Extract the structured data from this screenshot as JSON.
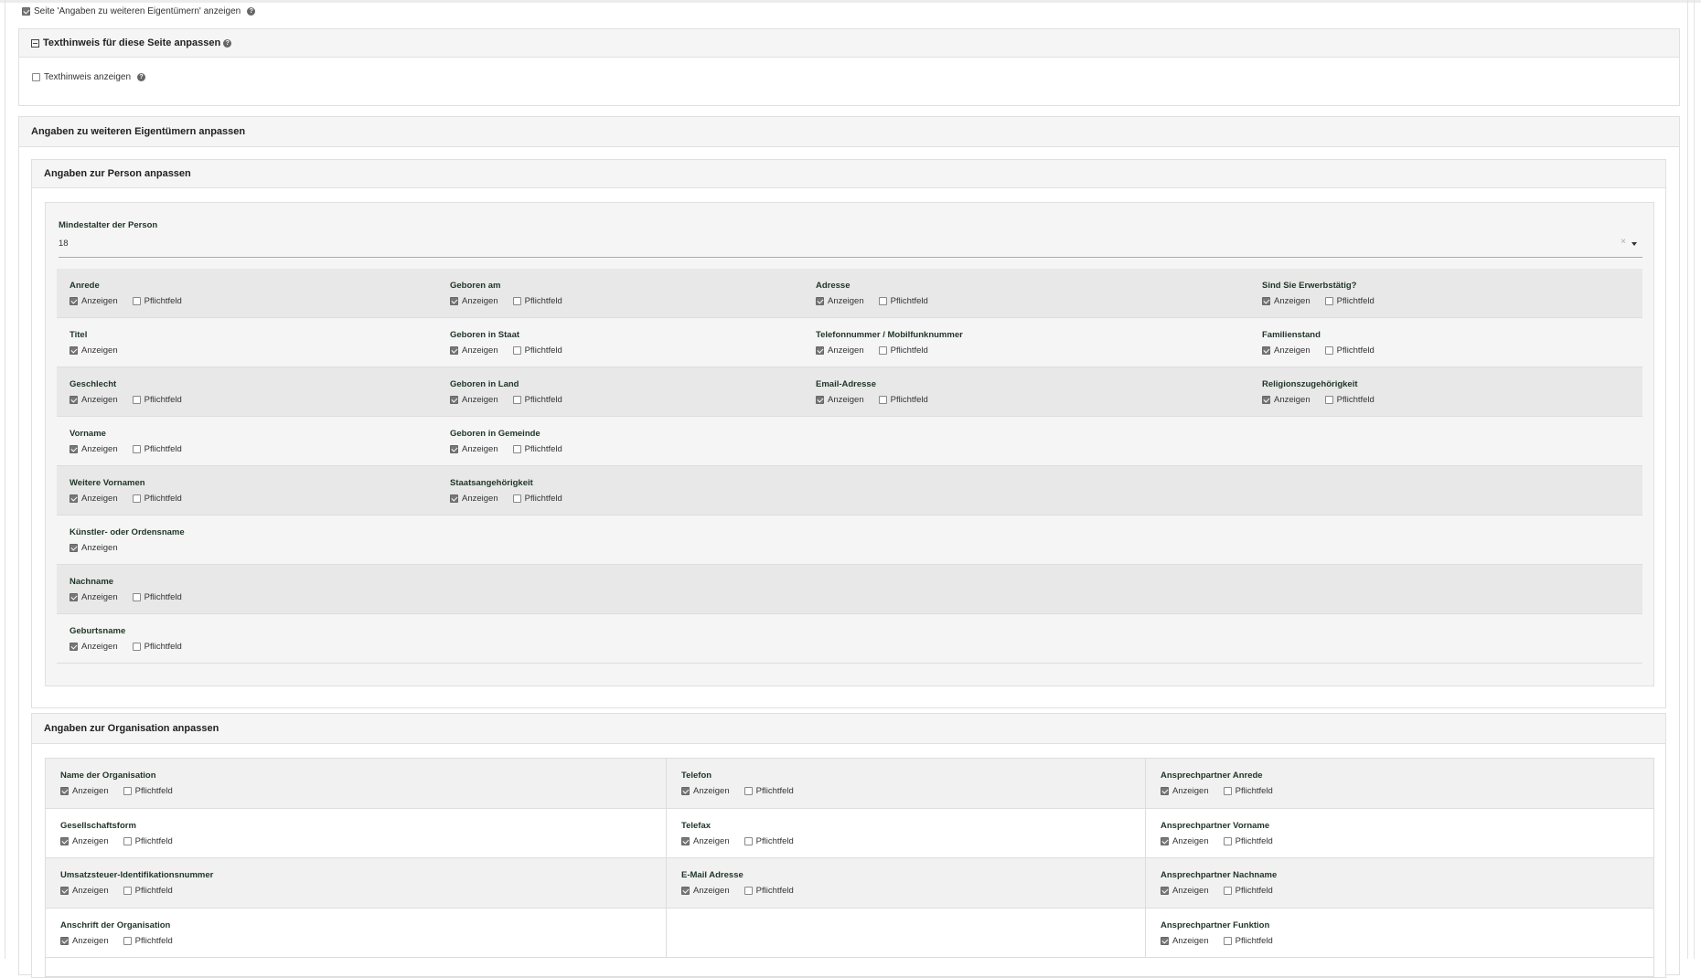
{
  "page_toggle": {
    "label": "Seite 'Angaben zu weiteren Eigentümern' anzeigen",
    "checked": true
  },
  "texthinweis_panel": {
    "title": "Texthinweis für diese Seite anpassen",
    "collapse_icon": "minus-square-icon",
    "checkbox_label": "Texthinweis anzeigen",
    "checked": false
  },
  "owners_panel": {
    "title": "Angaben zu weiteren Eigentümern anpassen"
  },
  "person_panel": {
    "title": "Angaben zur Person anpassen",
    "min_age_label": "Mindestalter der Person",
    "min_age_value": "18",
    "clear_icon": "×",
    "show_label": "Anzeigen",
    "required_label": "Pflichtfeld",
    "rows": [
      [
        {
          "label": "Anrede",
          "show": true,
          "required": false
        },
        {
          "label": "Geboren am",
          "show": true,
          "required": false
        },
        {
          "label": "Adresse",
          "show": true,
          "required": false
        },
        {
          "label": "Sind Sie Erwerbstätig?",
          "show": true,
          "required": false
        }
      ],
      [
        {
          "label": "Titel",
          "show": true
        },
        {
          "label": "Geboren in Staat",
          "show": true,
          "required": false
        },
        {
          "label": "Telefonnummer / Mobilfunknummer",
          "show": true,
          "required": false
        },
        {
          "label": "Familienstand",
          "show": true,
          "required": false
        }
      ],
      [
        {
          "label": "Geschlecht",
          "show": true,
          "required": false
        },
        {
          "label": "Geboren in Land",
          "show": true,
          "required": false
        },
        {
          "label": "Email-Adresse",
          "show": true,
          "required": false
        },
        {
          "label": "Religionszugehörigkeit",
          "show": true,
          "required": false
        }
      ],
      [
        {
          "label": "Vorname",
          "show": true,
          "required": false
        },
        {
          "label": "Geboren in Gemeinde",
          "show": true,
          "required": false
        },
        null,
        null
      ],
      [
        {
          "label": "Weitere Vornamen",
          "show": true,
          "required": false
        },
        {
          "label": "Staatsangehörigkeit",
          "show": true,
          "required": false
        },
        null,
        null
      ],
      [
        {
          "label": "Künstler- oder Ordensname",
          "show": true
        },
        null,
        null,
        null
      ],
      [
        {
          "label": "Nachname",
          "show": true,
          "required": false
        },
        null,
        null,
        null
      ],
      [
        {
          "label": "Geburtsname",
          "show": true,
          "required": false
        },
        null,
        null,
        null
      ]
    ]
  },
  "org_panel": {
    "title": "Angaben zur Organisation anpassen",
    "show_label": "Anzeigen",
    "required_label": "Pflichtfeld",
    "rows": [
      [
        {
          "label": "Name der Organisation",
          "show": true,
          "required": false
        },
        {
          "label": "Telefon",
          "show": true,
          "required": false
        },
        {
          "label": "Ansprechpartner Anrede",
          "show": true,
          "required": false
        }
      ],
      [
        {
          "label": "Gesellschaftsform",
          "show": true,
          "required": false
        },
        {
          "label": "Telefax",
          "show": true,
          "required": false
        },
        {
          "label": "Ansprechpartner Vorname",
          "show": true,
          "required": false
        }
      ],
      [
        {
          "label": "Umsatzsteuer-Identifikationsnummer",
          "show": true,
          "required": false
        },
        {
          "label": "E-Mail Adresse",
          "show": true,
          "required": false
        },
        {
          "label": "Ansprechpartner Nachname",
          "show": true,
          "required": false
        }
      ],
      [
        {
          "label": "Anschrift der Organisation",
          "show": true,
          "required": false
        },
        null,
        {
          "label": "Ansprechpartner Funktion",
          "show": true,
          "required": false
        }
      ]
    ]
  }
}
